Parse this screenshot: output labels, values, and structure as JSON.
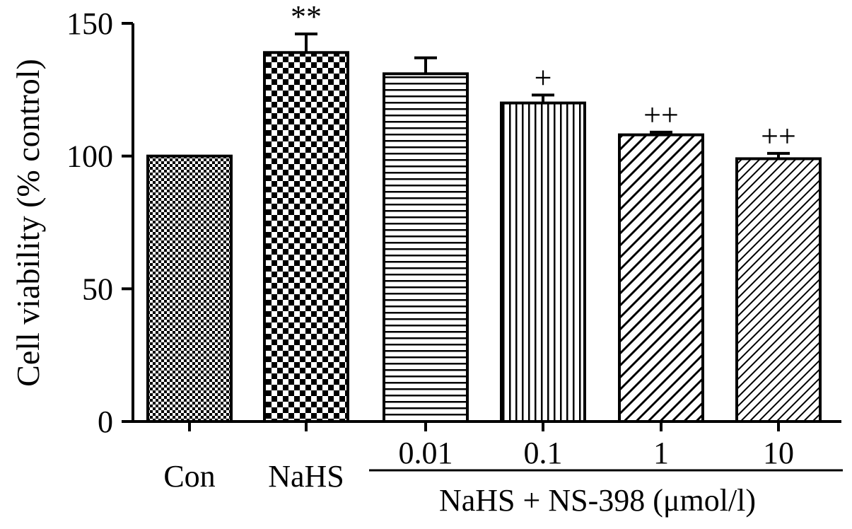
{
  "chart_data": {
    "type": "bar",
    "categories": [
      "Con",
      "NaHS",
      "0.01",
      "0.1",
      "1",
      "10"
    ],
    "values": [
      100,
      139,
      131,
      120,
      108,
      99
    ],
    "errors": [
      0,
      7,
      6,
      3,
      1,
      2
    ],
    "annotations": [
      "",
      "**",
      "",
      "+",
      "++",
      "++"
    ],
    "ylabel": "Cell viability  (% control)",
    "xlabel": "",
    "group_label": "NaHS + NS-398 (μmol/l)",
    "ylim": [
      0,
      150
    ],
    "yticks": [
      0,
      50,
      100,
      150
    ],
    "colors": {
      "fill": "#ffffff",
      "stroke": "#000000"
    },
    "patterns": [
      "fine-checker",
      "checker",
      "horizontal-lines",
      "vertical-lines",
      "diagonal",
      "diagonal-fine"
    ],
    "grid": false
  }
}
